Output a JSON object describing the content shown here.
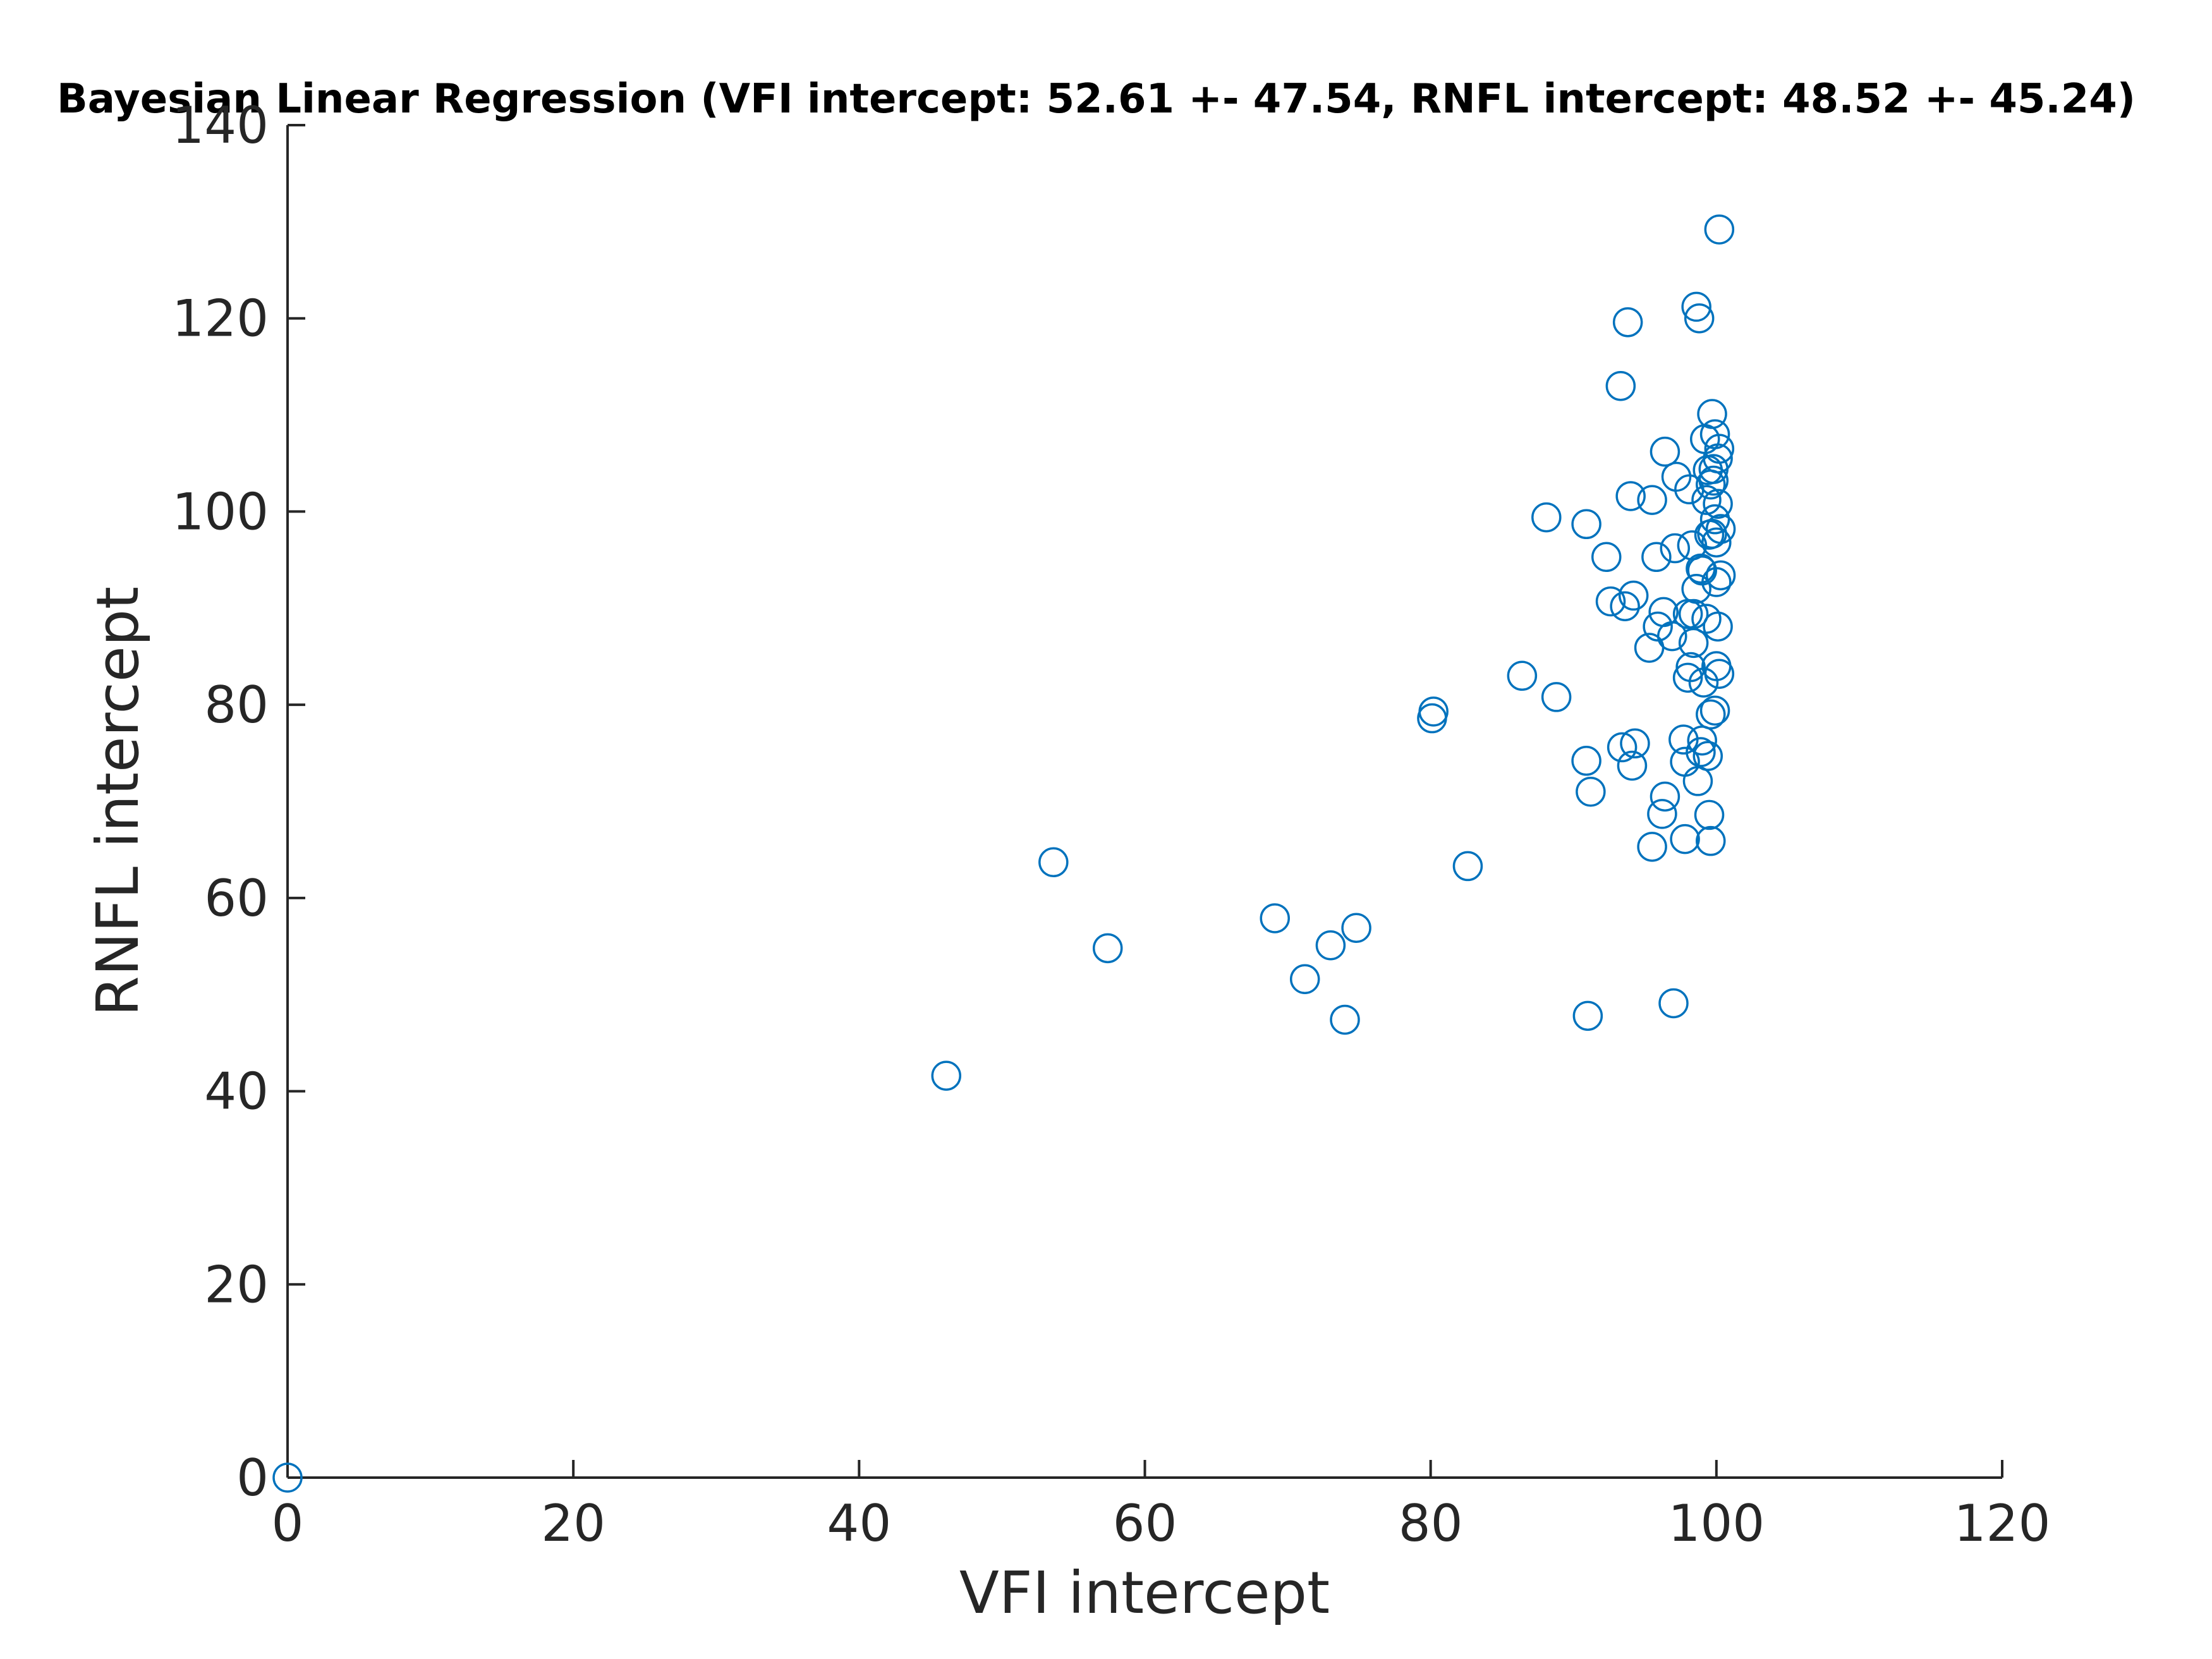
{
  "chart_data": {
    "type": "scatter",
    "title": "Bayesian Linear Regression (VFI intercept: 52.61 +- 47.54, RNFL intercept: 48.52 +- 45.24)",
    "xlabel": "VFI intercept",
    "ylabel": "RNFL intercept",
    "xlim": [
      0,
      120
    ],
    "ylim": [
      0,
      140
    ],
    "xticks": [
      "0",
      "20",
      "40",
      "60",
      "80",
      "100",
      "120"
    ],
    "yticks": [
      "0",
      "20",
      "40",
      "60",
      "80",
      "100",
      "120",
      "140"
    ],
    "grid": false,
    "marker": "open-circle",
    "marker_color": "#0072BD",
    "axis_color": "#262626",
    "series": [
      {
        "x": [
          0,
          46.1,
          53.6,
          57.4,
          69.1,
          71.2,
          73,
          74,
          74.8,
          80.2,
          80.1,
          82.6,
          86.4,
          88.1,
          88.8,
          90.9,
          90.9,
          91,
          91.2,
          92.3,
          92.6,
          93.3,
          93.4,
          93.6,
          93.8,
          94,
          94.1,
          94.2,
          94.3,
          95.3,
          95.5,
          95.5,
          95.8,
          95.9,
          96.2,
          96.3,
          96.4,
          96.4,
          96.9,
          97.1,
          97.2,
          97,
          97.7,
          97.8,
          97.8,
          98,
          98,
          98.1,
          98.2,
          98.3,
          98.4,
          98.6,
          98.6,
          98.7,
          98.8,
          98.9,
          99,
          99,
          99.1,
          99.2,
          99.3,
          99.3,
          99.4,
          99.5,
          99.5,
          99.6,
          99.6,
          99.7,
          99.7,
          99.8,
          99.8,
          99.9,
          99.9,
          100,
          100,
          100,
          100.1,
          100.1,
          100.1,
          100.2,
          100.2,
          100.3,
          100.3,
          99.4,
          98.9,
          99.6,
          100.2,
          99.9,
          98.4
        ],
        "y": [
          0,
          41.6,
          63.7,
          54.8,
          57.9,
          51.6,
          55.1,
          47.4,
          56.9,
          79.3,
          78.6,
          63.3,
          83,
          99.4,
          80.8,
          98.7,
          74.2,
          47.8,
          71,
          95.3,
          90.7,
          113,
          75.6,
          90.2,
          119.6,
          101.6,
          73.7,
          91.3,
          76,
          85.9,
          101.2,
          65.3,
          95.3,
          88.1,
          68.7,
          89.6,
          106.2,
          70.5,
          87.1,
          96.2,
          103.6,
          49.1,
          76.4,
          74.1,
          66.1,
          89.4,
          82.8,
          102.3,
          83.9,
          96.5,
          89.4,
          92,
          121.2,
          72.1,
          120,
          75.1,
          76.3,
          93.9,
          82.3,
          107.5,
          101.2,
          88.9,
          74.7,
          68.6,
          97.6,
          65.9,
          79,
          97.7,
          110.1,
          104.4,
          103.2,
          108,
          99.2,
          84,
          92.7,
          96.8,
          100.8,
          105.5,
          88.1,
          83.2,
          106.5,
          93.4,
          98.2,
          104.3,
          94.1,
          102.8,
          129.2,
          79.4,
          86.4
        ]
      }
    ]
  }
}
